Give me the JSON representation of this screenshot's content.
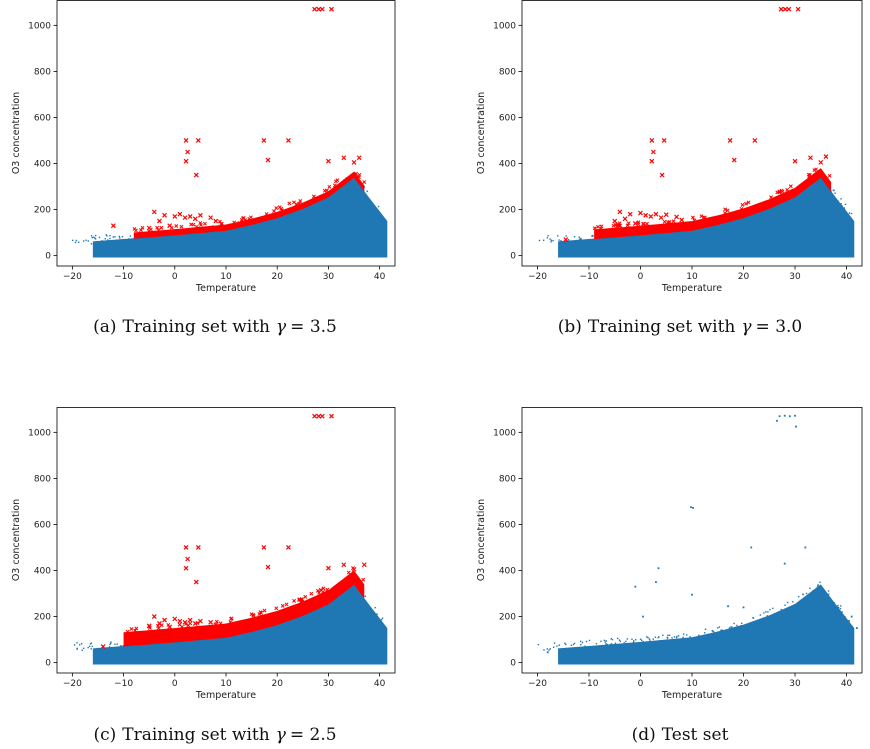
{
  "figure": {
    "panels": [
      {
        "caption_prefix": "(a)",
        "caption_text": "Training set with",
        "gamma_symbol": "γ",
        "gamma_value": "= 3.5"
      },
      {
        "caption_prefix": "(b)",
        "caption_text": "Training set with",
        "gamma_symbol": "γ",
        "gamma_value": "= 3.0"
      },
      {
        "caption_prefix": "(c)",
        "caption_text": "Training set with",
        "gamma_symbol": "γ",
        "gamma_value": "= 2.5"
      },
      {
        "caption_prefix": "(d)",
        "caption_text": "Test set",
        "gamma_symbol": "",
        "gamma_value": ""
      }
    ],
    "colors": {
      "normal": "#1f77b4",
      "outlier": "#ff0000",
      "axis": "#000000"
    }
  },
  "chart_data": [
    {
      "type": "scatter",
      "xlabel": "Temperature",
      "ylabel": "O3 concentration",
      "xlim": [
        -23,
        43
      ],
      "ylim": [
        -45,
        1110
      ],
      "xticks": [
        -20,
        -10,
        0,
        10,
        20,
        30,
        40
      ],
      "yticks": [
        0,
        200,
        400,
        600,
        800,
        1000
      ],
      "envelope": {
        "x": [
          -16,
          -10,
          0,
          10,
          15,
          20,
          25,
          30,
          35,
          38,
          41.5
        ],
        "y_upper": [
          62,
          72,
          90,
          110,
          135,
          165,
          205,
          255,
          340,
          250,
          150
        ]
      },
      "outlier_band": {
        "x_start": -8,
        "thickness": 25,
        "band_marker": "x"
      },
      "series": [
        {
          "marker": "x",
          "color": "#ff0000",
          "points": [
            [
              27.3,
              1070
            ],
            [
              28.1,
              1070
            ],
            [
              28.8,
              1070
            ],
            [
              30.6,
              1070
            ],
            [
              2.2,
              500
            ],
            [
              4.6,
              500
            ],
            [
              17.4,
              500
            ],
            [
              22.2,
              500
            ],
            [
              2.5,
              450
            ],
            [
              2.2,
              410
            ],
            [
              18.2,
              415
            ],
            [
              4.2,
              350
            ],
            [
              -4,
              190
            ],
            [
              -2,
              175
            ],
            [
              0,
              170
            ],
            [
              1,
              180
            ],
            [
              3,
              170
            ],
            [
              5,
              175
            ],
            [
              7,
              165
            ],
            [
              -5,
              120
            ],
            [
              -3,
              150
            ],
            [
              2,
              165
            ],
            [
              4,
              160
            ],
            [
              8,
              150
            ],
            [
              -12,
              130
            ],
            [
              -1,
              130
            ],
            [
              30,
              410
            ],
            [
              33,
              425
            ],
            [
              35,
              405
            ],
            [
              36,
              425
            ]
          ]
        }
      ]
    },
    {
      "type": "scatter",
      "xlabel": "Temperature",
      "ylabel": "O3 concentration",
      "xlim": [
        -23,
        43
      ],
      "ylim": [
        -45,
        1110
      ],
      "xticks": [
        -20,
        -10,
        0,
        10,
        20,
        30,
        40
      ],
      "yticks": [
        0,
        200,
        400,
        600,
        800,
        1000
      ],
      "envelope": {
        "x": [
          -16,
          -10,
          0,
          10,
          15,
          20,
          25,
          30,
          35,
          38,
          41.5
        ],
        "y_upper": [
          62,
          72,
          90,
          110,
          135,
          165,
          205,
          255,
          340,
          250,
          150
        ]
      },
      "outlier_band": {
        "x_start": -9,
        "thickness": 40,
        "band_marker": "x"
      },
      "series": [
        {
          "marker": "x",
          "color": "#ff0000",
          "points": [
            [
              27.3,
              1070
            ],
            [
              28.1,
              1070
            ],
            [
              28.8,
              1070
            ],
            [
              30.6,
              1070
            ],
            [
              2.2,
              500
            ],
            [
              4.6,
              500
            ],
            [
              17.4,
              500
            ],
            [
              22.2,
              500
            ],
            [
              2.5,
              450
            ],
            [
              2.2,
              410
            ],
            [
              18.2,
              415
            ],
            [
              4.2,
              350
            ],
            [
              -4,
              190
            ],
            [
              -2,
              180
            ],
            [
              0,
              185
            ],
            [
              1,
              175
            ],
            [
              3,
              180
            ],
            [
              5,
              178
            ],
            [
              7,
              168
            ],
            [
              -5,
              150
            ],
            [
              -3,
              160
            ],
            [
              2,
              170
            ],
            [
              4,
              165
            ],
            [
              8,
              155
            ],
            [
              -14.5,
              70
            ],
            [
              -1,
              140
            ],
            [
              30,
              410
            ],
            [
              33,
              425
            ],
            [
              35,
              405
            ],
            [
              36,
              430
            ]
          ]
        }
      ]
    },
    {
      "type": "scatter",
      "xlabel": "Temperature",
      "ylabel": "O3 concentration",
      "xlim": [
        -23,
        43
      ],
      "ylim": [
        -45,
        1110
      ],
      "xticks": [
        -20,
        -10,
        0,
        10,
        20,
        30,
        40
      ],
      "yticks": [
        0,
        200,
        400,
        600,
        800,
        1000
      ],
      "envelope": {
        "x": [
          -16,
          -10,
          0,
          10,
          15,
          20,
          25,
          30,
          35,
          38,
          41.5
        ],
        "y_upper": [
          62,
          72,
          90,
          110,
          135,
          165,
          205,
          255,
          340,
          250,
          150
        ]
      },
      "outlier_band": {
        "x_start": -10,
        "thickness": 60,
        "band_marker": "x"
      },
      "series": [
        {
          "marker": "x",
          "color": "#ff0000",
          "points": [
            [
              27.3,
              1070
            ],
            [
              28.1,
              1070
            ],
            [
              28.8,
              1070
            ],
            [
              30.6,
              1070
            ],
            [
              2.2,
              500
            ],
            [
              4.6,
              500
            ],
            [
              17.4,
              500
            ],
            [
              22.2,
              500
            ],
            [
              2.5,
              450
            ],
            [
              2.2,
              410
            ],
            [
              18.2,
              415
            ],
            [
              4.2,
              350
            ],
            [
              -4,
              200
            ],
            [
              -2,
              185
            ],
            [
              0,
              190
            ],
            [
              1,
              180
            ],
            [
              3,
              185
            ],
            [
              5,
              180
            ],
            [
              7,
              175
            ],
            [
              -5,
              160
            ],
            [
              -3,
              170
            ],
            [
              2,
              175
            ],
            [
              4,
              170
            ],
            [
              8,
              165
            ],
            [
              -14,
              70
            ],
            [
              -1,
              155
            ],
            [
              30,
              410
            ],
            [
              33,
              425
            ],
            [
              35,
              405
            ],
            [
              37,
              425
            ]
          ]
        }
      ]
    },
    {
      "type": "scatter",
      "xlabel": "Temperature",
      "ylabel": "O3 concentration",
      "xlim": [
        -23,
        43
      ],
      "ylim": [
        -45,
        1110
      ],
      "xticks": [
        -20,
        -10,
        0,
        10,
        20,
        30,
        40
      ],
      "yticks": [
        0,
        200,
        400,
        600,
        800,
        1000
      ],
      "envelope": {
        "x": [
          -16,
          -10,
          0,
          10,
          15,
          20,
          25,
          30,
          35,
          38,
          41.5
        ],
        "y_upper": [
          62,
          72,
          90,
          110,
          135,
          165,
          205,
          255,
          340,
          250,
          150
        ]
      },
      "series": [
        {
          "marker": "dot",
          "color": "#1f77b4",
          "points": [
            [
              27,
              1070
            ],
            [
              28,
              1072
            ],
            [
              29,
              1070
            ],
            [
              30,
              1072
            ],
            [
              26.5,
              1050
            ],
            [
              30.2,
              1025
            ],
            [
              9.8,
              675
            ],
            [
              10.2,
              672
            ],
            [
              21.5,
              500
            ],
            [
              32,
              500
            ],
            [
              3.5,
              410
            ],
            [
              28,
              430
            ],
            [
              10,
              295
            ],
            [
              -1,
              330
            ],
            [
              3,
              350
            ],
            [
              0.5,
              200
            ],
            [
              17,
              245
            ],
            [
              20,
              240
            ],
            [
              -18,
              45
            ],
            [
              41,
              200
            ],
            [
              42,
              150
            ]
          ]
        }
      ]
    }
  ]
}
